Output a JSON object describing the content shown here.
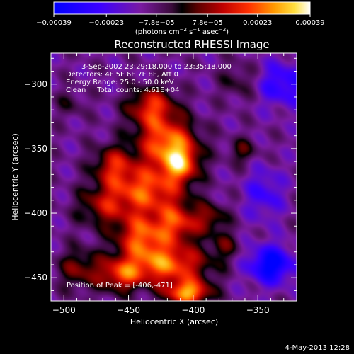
{
  "chart_data": {
    "type": "heatmap",
    "title": "Reconstructed RHESSI Image",
    "xlabel": "Heliocentric X (arcsec)",
    "ylabel": "Heliocentric Y (arcsec)",
    "xlim": [
      -510,
      -320
    ],
    "ylim": [
      -468,
      -276
    ],
    "x_ticks": [
      -500,
      -450,
      -400,
      -350
    ],
    "x_tick_labels": [
      "−500",
      "−450",
      "−400",
      "−350"
    ],
    "y_ticks": [
      -300,
      -350,
      -400,
      -450
    ],
    "y_tick_labels": [
      "−300",
      "−350",
      "−400",
      "−450"
    ],
    "colorbar": {
      "min": -0.00039,
      "max": 0.00039,
      "ticks": [
        -0.00039,
        -0.00023,
        -7.8e-05,
        7.8e-05,
        0.00023,
        0.00039
      ],
      "tick_labels": [
        "−0.00039",
        "−0.00023",
        "−7.8e−05",
        "7.8e−05",
        "0.00023",
        "0.00039"
      ],
      "unit_main": "(photons cm",
      "unit_sup1": "−2",
      "unit_mid": " s",
      "unit_sup2": "−1",
      "unit_mid2": " asec",
      "unit_sup3": "−2",
      "unit_end": ")"
    },
    "info_lines": [
      "3-Sep-2002 23:29:18.000 to 23:35:18.000",
      "Detectors: 4F 5F 6F 7F 8F, Att 0",
      "Energy Range: 25.0 - 50.0 keV",
      "Clean     Total counts: 4.61E+04"
    ],
    "peak_label": "Position of Peak = [-406,-471]",
    "peak": [
      -406,
      -471
    ],
    "sources": [
      {
        "x": -432,
        "y": -318,
        "sx": 13,
        "sy": 11,
        "amp": 0.00028
      },
      {
        "x": -420,
        "y": -345,
        "sx": 16,
        "sy": 13,
        "amp": 0.00034
      },
      {
        "x": -410,
        "y": -362,
        "sx": 10,
        "sy": 10,
        "amp": 0.0003
      },
      {
        "x": -436,
        "y": -382,
        "sx": 20,
        "sy": 14,
        "amp": 0.00032
      },
      {
        "x": -462,
        "y": -363,
        "sx": 11,
        "sy": 11,
        "amp": 0.00022
      },
      {
        "x": -470,
        "y": -395,
        "sx": 14,
        "sy": 11,
        "amp": 0.00018
      },
      {
        "x": -440,
        "y": -418,
        "sx": 14,
        "sy": 12,
        "amp": 0.0003
      },
      {
        "x": -412,
        "y": -408,
        "sx": 12,
        "sy": 11,
        "amp": 0.00026
      },
      {
        "x": -420,
        "y": -440,
        "sx": 22,
        "sy": 11,
        "amp": 0.00034
      },
      {
        "x": -456,
        "y": -448,
        "sx": 12,
        "sy": 9,
        "amp": 0.00026
      },
      {
        "x": -404,
        "y": -462,
        "sx": 12,
        "sy": 7,
        "amp": 0.00038
      },
      {
        "x": -488,
        "y": -443,
        "sx": 12,
        "sy": 11,
        "amp": 0.00017
      },
      {
        "x": -386,
        "y": -404,
        "sx": 9,
        "sy": 8,
        "amp": 0.00016
      },
      {
        "x": -362,
        "y": -352,
        "sx": 8,
        "sy": 7,
        "amp": 0.00013
      },
      {
        "x": -376,
        "y": -425,
        "sx": 8,
        "sy": 8,
        "amp": 0.00012
      },
      {
        "x": -365,
        "y": -298,
        "sx": 10,
        "sy": 10,
        "amp": 0.0001
      },
      {
        "x": -495,
        "y": -315,
        "sx": 8,
        "sy": 8,
        "amp": 8e-05
      },
      {
        "x": -340,
        "y": -440,
        "sx": 12,
        "sy": 10,
        "amp": -0.0003
      },
      {
        "x": -330,
        "y": -300,
        "sx": 14,
        "sy": 12,
        "amp": -0.00018
      },
      {
        "x": -345,
        "y": -385,
        "sx": 10,
        "sy": 14,
        "amp": -0.00014
      }
    ],
    "background": -0.00011
  },
  "footer_date": "4-May-2013 12:28"
}
